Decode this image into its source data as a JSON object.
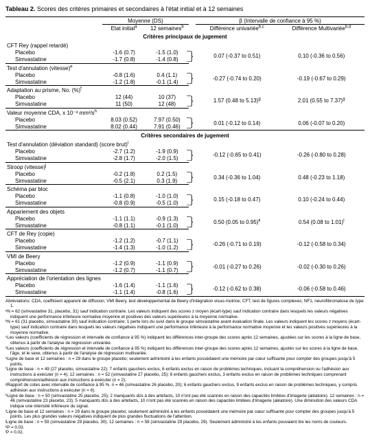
{
  "title_label": "Tableau 2.",
  "title_rest": "Scores des critères primaires et secondaires à l'état initial et à 12 semaines",
  "col_widths_pct": [
    27,
    12,
    12,
    2,
    23,
    24
  ],
  "header": {
    "mean_sd": "Moyenne (DS)",
    "beta_ci": "β (Intervalle de confiance à 95 %)",
    "baseline": "Etat initial",
    "baseline_sup": "a",
    "wk12": "12 semaines",
    "wk12_sup": "b",
    "uni": "Différence univariée",
    "uni_sup": "b,c",
    "multi": "Différence Multivariée",
    "multi_sup": "b,d"
  },
  "section_primary": "Critères principaux de jugement",
  "section_secondary": "Critères secondaires de jugement",
  "rows": [
    {
      "label": "CFT Rey (rappel retardé)",
      "sup": "",
      "placebo": {
        "name": "Placebo",
        "baseline": "-1.6 (0.7)",
        "wk12": "-1.5 (1.0)"
      },
      "sim": {
        "name": "Simvastatine",
        "baseline": "-1.7 (0.8)",
        "wk12": "-1.4 (0.8)"
      },
      "uni": "0.07 (-0.37 to 0.51)",
      "multi": "0.10 (-0.36 to 0.56)",
      "section": "p"
    },
    {
      "label": "Test d'annulation (vitesse)",
      "sup": "e",
      "placebo": {
        "name": "Placebo",
        "baseline": "-0.8 (1.6)",
        "wk12": "0.4 (1.1)"
      },
      "sim": {
        "name": "Simvastatine",
        "baseline": "-1.2 (1.8)",
        "wk12": "-0.1 (1.4)"
      },
      "uni": "-0.27 (-0.74 to 0.20)",
      "multi": "-0.19 (-0.67 to 0.29)",
      "section": "p"
    },
    {
      "label": "Adaptation au prisme, No. (%)",
      "sup": "f",
      "placebo": {
        "name": "Placebo",
        "baseline": "12 (44)",
        "wk12": "10 (37)"
      },
      "sim": {
        "name": "Simvastatine",
        "baseline": "11 (50)",
        "wk12": "12 (48)"
      },
      "uni": "1.57 (0.48 to 5.13)",
      "uni_sup": "g",
      "multi": "2.01 (0.55 to 7.37)",
      "multi_sup": "g",
      "section": "p"
    },
    {
      "label": "Valeur moyenne CDA, x 10⁻³ mm²/s",
      "sup": "h",
      "placebo": {
        "name": "Placebo",
        "baseline": "8.03 (0.52)",
        "wk12": "7.97 (0.50)"
      },
      "sim": {
        "name": "Simvastatine",
        "baseline": "8.02 (0.44)",
        "wk12": "7.91 (0.46)"
      },
      "uni": "0.01 (-0.12 to 0.14)",
      "multi": "0.06 (-0.07 to 0.20)",
      "section": "p"
    },
    {
      "label": "Test d'annulation (déviation standard) (score brut)",
      "sup": "i",
      "placebo": {
        "name": "Placebo",
        "baseline": "-2.7 (1.2)",
        "wk12": "-1.9 (0.9)"
      },
      "sim": {
        "name": "Simvastatine",
        "baseline": "-2.8 (1.7)",
        "wk12": "-2.0 (1.5)"
      },
      "uni": "-0.12 (-0.65 to 0.41)",
      "multi": "-0.26 (-0.80 to 0.28)",
      "section": "s"
    },
    {
      "label": "Stroop (vitesse)",
      "sup": "j",
      "placebo": {
        "name": "Placebo",
        "baseline": "-0.2 (1.8)",
        "wk12": "0.2 (1.5)"
      },
      "sim": {
        "name": "Simvastatine",
        "baseline": "-0.5 (2.1)",
        "wk12": "0.3 (1.9)"
      },
      "uni": "0.34 (-0.36 to 1.04)",
      "multi": "0.48 (-0.23 to 1.18)",
      "section": "s"
    },
    {
      "label": "Schéma par bloc",
      "sup": "",
      "placebo": {
        "name": "Placebo",
        "baseline": "-1.1 (0.8)",
        "wk12": "-1.0 (1.0)"
      },
      "sim": {
        "name": "Simvastatine",
        "baseline": "-0.8 (0.9)",
        "wk12": "-0.5 (1.0)"
      },
      "uni": "0.15 (-0.18 to 0.47)",
      "multi": "0.10 (-0.24 to 0.44)",
      "section": "s"
    },
    {
      "label": "Appariement des objets",
      "sup": "",
      "placebo": {
        "name": "Placebo",
        "baseline": "-1.1 (1.1)",
        "wk12": "-0.9 (1.3)"
      },
      "sim": {
        "name": "Simvastatine",
        "baseline": "-0.8 (1.1)",
        "wk12": "-0.1 (1.0)"
      },
      "uni": "0.50 (0.05 to 0.95)",
      "uni_sup": "k",
      "multi": "0.54 (0.08 to 1.01)",
      "multi_sup": "l",
      "section": "s"
    },
    {
      "label": "CFT de Rey (copie)",
      "sup": "",
      "placebo": {
        "name": "Placebo",
        "baseline": "-1.2 (1.2)",
        "wk12": "-0.7 (1.1)"
      },
      "sim": {
        "name": "Simvastatine",
        "baseline": "-1.4 (1.3)",
        "wk12": "-1.0 (1.2)"
      },
      "uni": "-0.26 (-0.71 to 0.19)",
      "multi": "-0.12 (-0.58 to 0.34)",
      "section": "s"
    },
    {
      "label": "VMI de Beery",
      "sup": "",
      "placebo": {
        "name": "Placebo",
        "baseline": "-1.2 (0.9)",
        "wk12": "-1.1 (0.9)"
      },
      "sim": {
        "name": "Simvastatine",
        "baseline": "-1.2 (0.7)",
        "wk12": "-1.1 (0.7)"
      },
      "uni": "-0.01 (-0.27 to 0.26)",
      "multi": "-0.02 (-0.30 to 0.26)",
      "section": "s"
    },
    {
      "label": "Appréciation de l'orientation des lignes",
      "sup": "",
      "placebo": {
        "name": "Placebo",
        "baseline": "-1.6 (1.4)",
        "wk12": "-1.1 (1.6)"
      },
      "sim": {
        "name": "Simvastatine",
        "baseline": "-1.1 (1.4)",
        "wk12": "-0.8 (1.6)"
      },
      "uni": "-0.12 (-0.62 to 0.38)",
      "multi": "-0.06 (-0.58 to 0.46)",
      "section": "s"
    }
  ],
  "footnotes": [
    "Abréviations: CDA, coefficient apparent de diffusion; VMI Beery, test développemental de Beery d'intégration visuo-motrice; CFT, test de figures complexes; NF1, neurofibromatose de type 1.",
    "ᵃN = 62 (simvastatine 31, placebo, 31) sauf indication contraire. Les valeurs indiquent des scores z moyen (écart-type) sauf indication contraire dans lesquels les valeurs négatives indiquent une performance inférieure normative moyenne et positives des valeurs supérieures à la moyenne normative.",
    "ᵇN = 61 (31 placebo, simvastatine 30) sauf indication contraire; 1 perte lors du suivi dans le groupe simvastatine avant évaluation finale. Les valeurs indiquent les scores z moyens (écart-type) sauf indication contraire dans lesquels les valeurs négatives indiquent une performance inférieure à la performance normative moyenne et les valeurs positives supérieures à la moyenne normative.",
    "ᶜLes valeurs (coefficients de régression et intervalle de confiance à 95 %) indiquent les différences inter-groupe des scores après 12 semaines, ajustées sur les scores à la ligne de base, obtenus à partir de l'analyse de régression univariée.",
    "ᵈLes valeurs (coefficients de régression et intervalle de confiance à 95 %) indiquent les différences inter-groupe des scores après 12 semaines, ajustés sur les scores à la ligne de base, l'âge, et le sexe, obtenus à partir de l'analyse de régression multivariée.",
    "ᵉLigne de base et 12 semaines : n = 29 dans le groupe placebo; seulement administré à les enfants possédaient une mémoire par cœur suffisante pour compter des groupes jusqu'à 5 points.",
    "ᶠLigne de base : n = 49 (27 placebo, simvastatine 22); 7 enfants gauchers exclus, 6 enfants exclus en raison de problèmes techniques, incluant la compréhension ou l'adhésion aux instructions à exécuter (n = 4); 12 semaines : n = 52 (simvastatine 27 placebo, 25); 6 enfants gauchers exclus, 3 enfants exclus en raison de problèmes techniques comprenant compréhension/adhésion aux instructions à exécuter (n = 2).",
    "ᵍRapport de cotes avec intervalle de confiance à 95 %. n = 46 (simvastatine 26 placebo, 20); 6 enfants gauchers exclus, 9 enfants exclus en raison de problèmes techniques, y compris adhésion aux instructions à exécuter (n = 6).",
    "ʰLigne de base : n = 50 (simvastatine 25 placebo, 25); 2 manquants dûs à des artefacts, 10 n'ont pas été scannés en raison des capacités limitées d'imagerie (aléatoire). 12 semaines : n = 46 (simvastatine 23 placebo, 23); 5 manquants dûs à des artefacts, 10 n'ont pas été scannés en raison des capacités limitées d'imagerie (aléatoire). Une diminution des valeurs CDA indique une intensité inférieure du signal.",
    "ⁱLigne de base et 12 semaines : n = 29 dans le groupe placebo; seulement administré à les enfants possédaient une mémoire par cœur suffisante pour compter des groupes jusqu'à 5 points. Les plus grandes valeurs négatives indiquent de plus grandes fluctuations de l'attention.",
    "ʲLigne de base : n = 59 (simvastatine 29 placebo, 30). 12 semaines : n = 58 (simvastatine 29 placebo, 29). Seulement administré à les enfants pouvaient lire les noms de couleurs.",
    "ᵏP = 0.03.",
    "ˡP = 0.02."
  ]
}
